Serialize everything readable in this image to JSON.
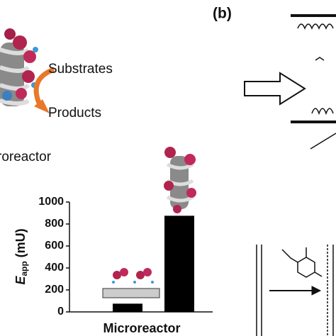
{
  "panel_a": {
    "scheme_labels": [
      "Substrates",
      "Products"
    ],
    "caption": "roreactor"
  },
  "panel_b": {
    "label": "(b)"
  },
  "chart_data": {
    "type": "bar",
    "categories": [
      null,
      null
    ],
    "values": [
      75,
      875
    ],
    "color": "#000000",
    "ylim": [
      0,
      1000
    ],
    "yticks": [
      0,
      200,
      400,
      600,
      800,
      1000
    ],
    "ylabel_parts": [
      "E",
      "app",
      "(mU)"
    ],
    "xlabel": "Microreactor"
  }
}
